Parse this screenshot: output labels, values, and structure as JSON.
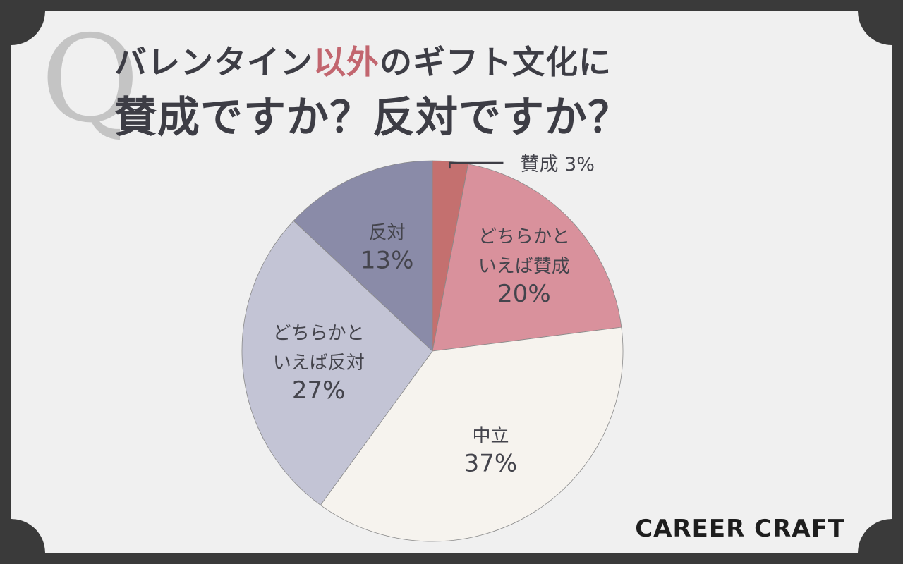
{
  "title": {
    "line1_pre": "バレンタイン",
    "line1_accent": "以外",
    "line1_post": "のギフト文化に",
    "line2": "賛成ですか？反対ですか？"
  },
  "q_mark": "Q",
  "brand": "CAREER CRAFT",
  "colors": {
    "frame": "#3a3a3a",
    "background": "#f0f0f0",
    "title": "#3d3d45",
    "accent": "#c2666f"
  },
  "chart_data": {
    "type": "pie",
    "start": "12 o'clock",
    "direction": "clockwise",
    "slices": [
      {
        "label": "賛成",
        "label_lines": [
          "賛成"
        ],
        "value": 3,
        "value_label": "3%",
        "color": "#c4706f",
        "callout": true
      },
      {
        "label": "どちらかといえば賛成",
        "label_lines": [
          "どちらかと",
          "いえば賛成"
        ],
        "value": 20,
        "value_label": "20%",
        "color": "#d9919c"
      },
      {
        "label": "中立",
        "label_lines": [
          "中立"
        ],
        "value": 37,
        "value_label": "37%",
        "color": "#f6f3ee"
      },
      {
        "label": "どちらかといえば反対",
        "label_lines": [
          "どちらかと",
          "いえば反対"
        ],
        "value": 27,
        "value_label": "27%",
        "color": "#c3c4d5"
      },
      {
        "label": "反対",
        "label_lines": [
          "反対"
        ],
        "value": 13,
        "value_label": "13%",
        "color": "#8a8ba8"
      }
    ]
  }
}
